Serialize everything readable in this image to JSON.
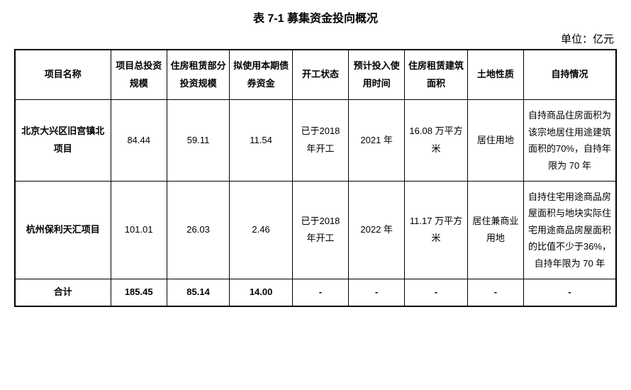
{
  "title": "表 7-1  募集资金投向概况",
  "unit": "单位：亿元",
  "table": {
    "columns": [
      "项目名称",
      "项目总投资规模",
      "住房租赁部分投资规模",
      "拟使用本期债券资金",
      "开工状态",
      "预计投入使用时间",
      "住房租赁建筑面积",
      "土地性质",
      "自持情况"
    ],
    "rows": [
      {
        "name": "北京大兴区旧宫镇北项目",
        "total_inv": "84.44",
        "rent_inv": "59.11",
        "bond_fund": "11.54",
        "start": "已于2018 年开工",
        "use_time": "2021 年",
        "area": "16.08 万平方米",
        "land": "居住用地",
        "holding": "自持商品住房面积为该宗地居住用途建筑面积的70%，自持年限为 70 年"
      },
      {
        "name": "杭州保利天汇项目",
        "total_inv": "101.01",
        "rent_inv": "26.03",
        "bond_fund": "2.46",
        "start": "已于2018 年开工",
        "use_time": "2022 年",
        "area": "11.17 万平方米",
        "land": "居住兼商业用地",
        "holding": "自持住宅用途商品房屋面积与地块实际住宅用途商品房屋面积的比值不少于36%，自持年限为 70 年"
      }
    ],
    "total_row": {
      "label": "合计",
      "total_inv": "185.45",
      "rent_inv": "85.14",
      "bond_fund": "14.00",
      "start": "-",
      "use_time": "-",
      "area": "-",
      "land": "-",
      "holding": "-"
    }
  }
}
